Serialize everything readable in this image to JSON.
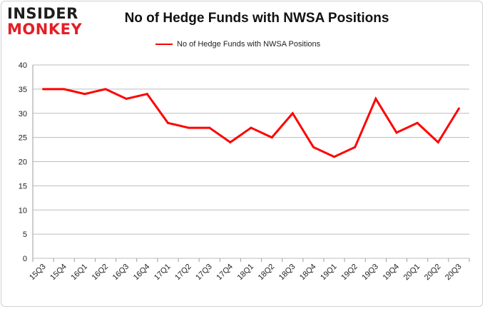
{
  "logo": {
    "line1": "INSIDER",
    "line2": "MONKEY"
  },
  "chart_data": {
    "type": "line",
    "title": "No of Hedge Funds with NWSA Positions",
    "xlabel": "",
    "ylabel": "",
    "categories": [
      "15Q3",
      "15Q4",
      "16Q1",
      "16Q2",
      "16Q3",
      "16Q4",
      "17Q1",
      "17Q2",
      "17Q3",
      "17Q4",
      "18Q1",
      "18Q2",
      "18Q3",
      "18Q4",
      "19Q1",
      "19Q2",
      "19Q3",
      "19Q4",
      "20Q1",
      "20Q2",
      "20Q3"
    ],
    "series": [
      {
        "name": "No of Hedge Funds with NWSA Positions",
        "values": [
          35,
          35,
          34,
          35,
          33,
          34,
          28,
          27,
          27,
          24,
          27,
          25,
          30,
          23,
          21,
          23,
          33,
          26,
          28,
          24,
          31
        ]
      }
    ],
    "ylim": [
      0,
      40
    ],
    "yticks": [
      0,
      5,
      10,
      15,
      20,
      25,
      30,
      35,
      40
    ],
    "grid": true,
    "legend": "top-center",
    "colors": {
      "series": "#ff0000",
      "grid": "#bdbdbd"
    }
  }
}
